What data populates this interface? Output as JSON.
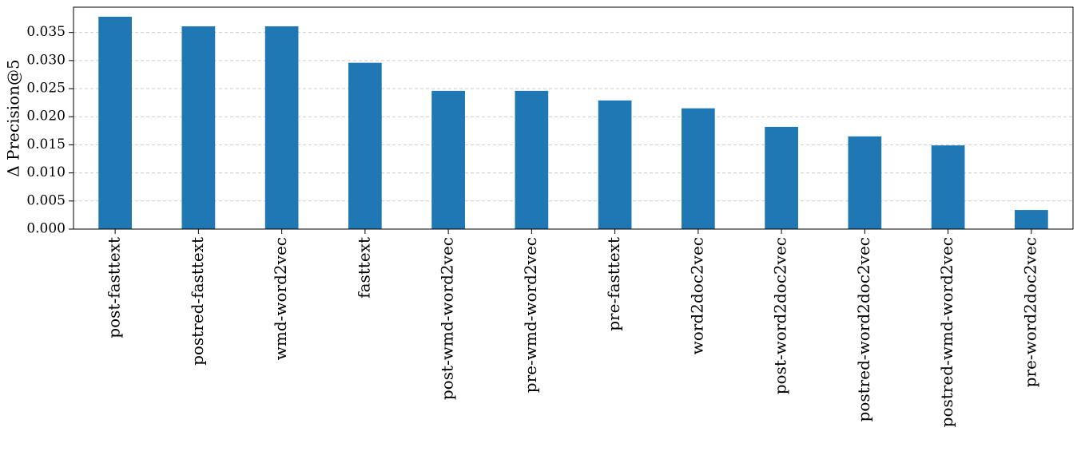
{
  "chart_data": {
    "type": "bar",
    "y_label": "Δ Precision@5",
    "categories": [
      "post-fasttext",
      "postred-fasttext",
      "wmd-word2vec",
      "fasttext",
      "post-wmd-word2vec",
      "pre-wmd-word2vec",
      "pre-fasttext",
      "word2doc2vec",
      "post-word2doc2vec",
      "postred-word2doc2vec",
      "postred-wmd-word2vec",
      "pre-word2doc2vec"
    ],
    "values": [
      0.0378,
      0.0361,
      0.0361,
      0.0296,
      0.0246,
      0.0246,
      0.0229,
      0.0215,
      0.0182,
      0.0165,
      0.0149,
      0.0034
    ],
    "color": "#1f77b4",
    "ylim": [
      0,
      0.0395
    ],
    "yticks": [
      {
        "value": 0,
        "label": "0.000"
      },
      {
        "value": 0.005,
        "label": "0.005"
      },
      {
        "value": 0.01,
        "label": "0.010"
      },
      {
        "value": 0.015,
        "label": "0.015"
      },
      {
        "value": 0.02,
        "label": "0.020"
      },
      {
        "value": 0.025,
        "label": "0.025"
      },
      {
        "value": 0.03,
        "label": "0.030"
      },
      {
        "value": 0.035,
        "label": "0.035"
      }
    ],
    "grid": true
  }
}
